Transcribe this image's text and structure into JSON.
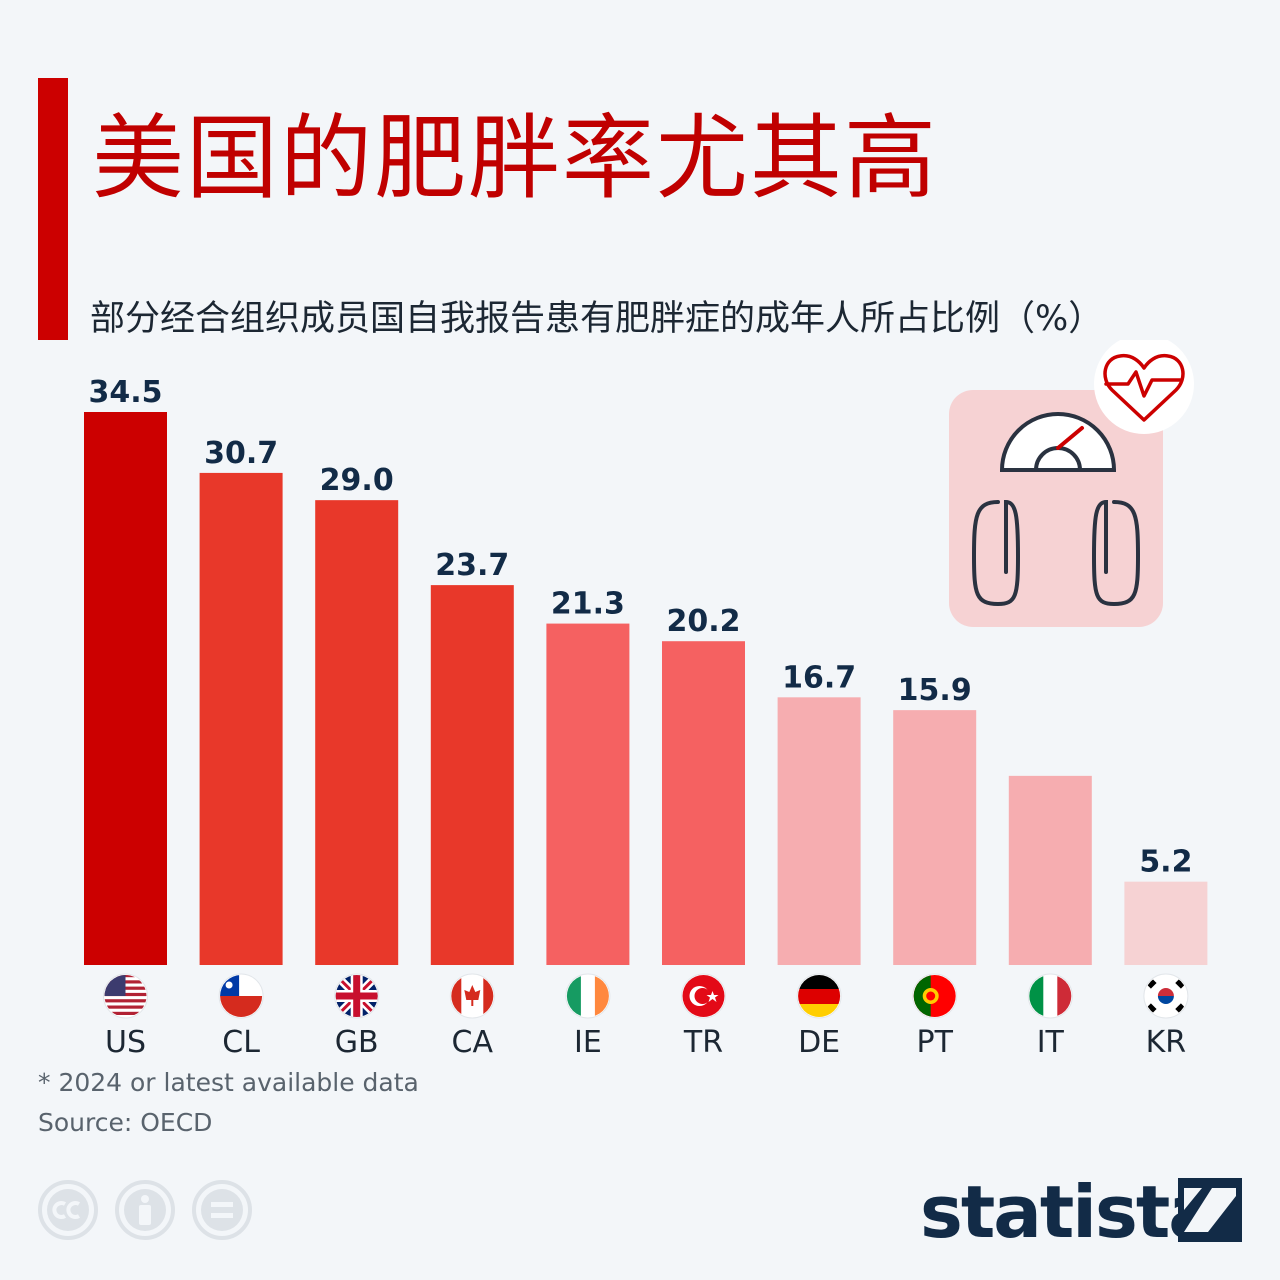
{
  "title": "美国的肥胖率尤其高",
  "subtitle": "部分经合组织成员国自我报告患有肥胖症的成年人所占比例（%）",
  "footnote": "* 2024 or latest available data",
  "source": "Source: OECD",
  "brand": "statista",
  "colors": {
    "accent": "#cc0000",
    "title": "#c00000",
    "tier1": "#cc0000",
    "tier2": "#e8382a",
    "tier3": "#f56161",
    "tier4": "#f6adb0",
    "tier5": "#f6d2d3",
    "value_text": "#122b47"
  },
  "icons": [
    "heart-pulse-icon",
    "bathroom-scale-icon",
    "cc-icon",
    "attribution-icon",
    "no-derivatives-icon",
    "statista-logo-mark"
  ],
  "chart_data": {
    "type": "bar",
    "title": "部分经合组织成员国自我报告患有肥胖症的成年人所占比例（%）",
    "xlabel": "",
    "ylabel": "",
    "ylim": [
      0,
      34.5
    ],
    "grid": false,
    "categories": [
      "US",
      "CL",
      "GB",
      "CA",
      "IE",
      "TR",
      "DE",
      "PT",
      "IT",
      "KR"
    ],
    "values": [
      34.5,
      30.7,
      29.0,
      23.7,
      21.3,
      20.2,
      16.7,
      15.9,
      11.8,
      5.2
    ],
    "value_labels": [
      "34.5",
      "30.7",
      "29.0",
      "23.7",
      "21.3",
      "20.2",
      "16.7",
      "15.9",
      "",
      "5.2"
    ],
    "color_tiers": [
      1,
      2,
      2,
      2,
      3,
      3,
      4,
      4,
      4,
      5
    ]
  }
}
